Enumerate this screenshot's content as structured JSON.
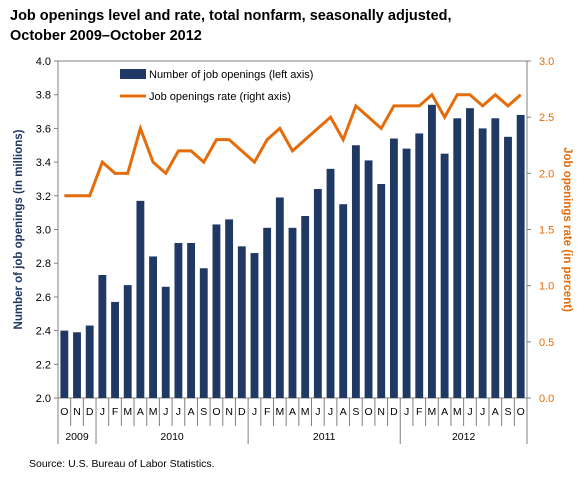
{
  "title_line1": "Job openings level and rate, total nonfarm, seasonally adjusted,",
  "title_line2": "October 2009–October 2012",
  "source": "Source: U.S. Bureau of Labor Statistics.",
  "colors": {
    "bars": "#1f3864",
    "line": "#e46c0a",
    "right_axis_text": "#e46c0a"
  },
  "chart_data": {
    "type": "bar",
    "secondary_type": "line",
    "month_labels": [
      "O",
      "N",
      "D",
      "J",
      "F",
      "M",
      "A",
      "M",
      "J",
      "J",
      "A",
      "S",
      "O",
      "N",
      "D",
      "J",
      "F",
      "M",
      "A",
      "M",
      "J",
      "J",
      "A",
      "S",
      "O",
      "N",
      "D",
      "J",
      "F",
      "M",
      "A",
      "M",
      "J",
      "J",
      "A",
      "S",
      "O"
    ],
    "year_groups": [
      {
        "label": "2009",
        "start": 0,
        "end": 2
      },
      {
        "label": "2010",
        "start": 3,
        "end": 14
      },
      {
        "label": "2011",
        "start": 15,
        "end": 26
      },
      {
        "label": "2012",
        "start": 27,
        "end": 36
      }
    ],
    "series": [
      {
        "name": "Number of job openings (left axis)",
        "axis": "left",
        "type": "bar",
        "values": [
          2.4,
          2.39,
          2.43,
          2.73,
          2.57,
          2.67,
          3.17,
          2.84,
          2.66,
          2.92,
          2.92,
          2.77,
          3.03,
          3.06,
          2.9,
          2.86,
          3.01,
          3.19,
          3.01,
          3.08,
          3.24,
          3.36,
          3.15,
          3.5,
          3.41,
          3.27,
          3.54,
          3.48,
          3.57,
          3.74,
          3.45,
          3.66,
          3.72,
          3.6,
          3.66,
          3.55,
          3.68
        ]
      },
      {
        "name": "Job openings rate (right axis)",
        "axis": "right",
        "type": "line",
        "values": [
          1.8,
          1.8,
          1.8,
          2.1,
          2.0,
          2.0,
          2.4,
          2.1,
          2.0,
          2.2,
          2.2,
          2.1,
          2.3,
          2.3,
          2.2,
          2.1,
          2.3,
          2.4,
          2.2,
          2.3,
          2.4,
          2.5,
          2.3,
          2.6,
          2.5,
          2.4,
          2.6,
          2.6,
          2.6,
          2.7,
          2.5,
          2.7,
          2.7,
          2.6,
          2.7,
          2.6,
          2.7
        ]
      }
    ],
    "ylabel": "Number of job openings (in millions)",
    "y2label": "Job openings rate (in percent)",
    "ylim": [
      2.0,
      4.0
    ],
    "y2lim": [
      0.0,
      3.0
    ],
    "yticks": [
      "2.0",
      "2.2",
      "2.4",
      "2.6",
      "2.8",
      "3.0",
      "3.2",
      "3.4",
      "3.6",
      "3.8",
      "4.0"
    ],
    "y2ticks": [
      "0.0",
      "0.5",
      "1.0",
      "1.5",
      "2.0",
      "2.5",
      "3.0"
    ],
    "grid": false,
    "legend_position": "top-left"
  }
}
